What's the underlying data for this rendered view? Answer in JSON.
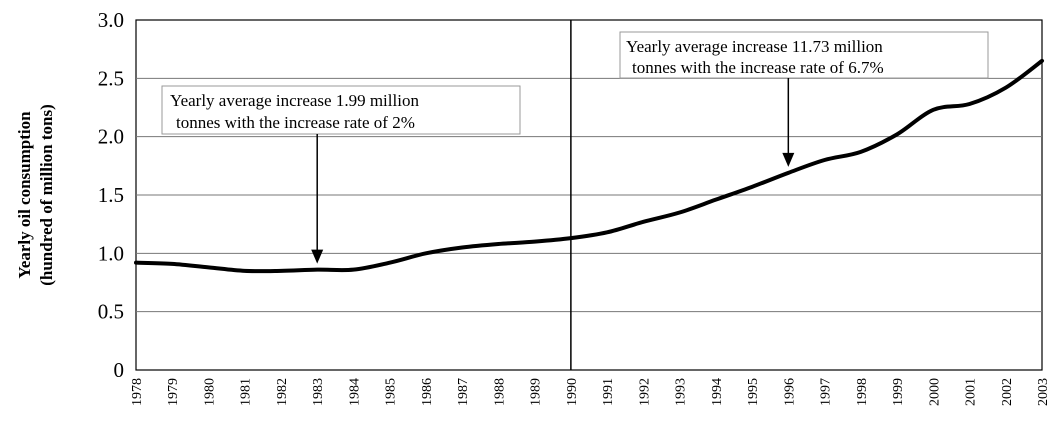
{
  "chart_data": {
    "type": "line",
    "title": "",
    "xlabel": "",
    "ylabel_line1": "Yearly oil consumption",
    "ylabel_line2": "(hundred of million tons)",
    "x": [
      "1978",
      "1979",
      "1980",
      "1981",
      "1982",
      "1983",
      "1984",
      "1985",
      "1986",
      "1987",
      "1988",
      "1989",
      "1990",
      "1991",
      "1992",
      "1993",
      "1994",
      "1995",
      "1996",
      "1997",
      "1998",
      "1999",
      "2000",
      "2001",
      "2002",
      "2003"
    ],
    "series": [
      {
        "values": [
          0.92,
          0.91,
          0.88,
          0.85,
          0.85,
          0.86,
          0.86,
          0.92,
          1.0,
          1.05,
          1.08,
          1.1,
          1.13,
          1.18,
          1.27,
          1.35,
          1.46,
          1.57,
          1.69,
          1.8,
          1.87,
          2.02,
          2.23,
          2.28,
          2.42,
          2.65
        ],
        "color": "#000000"
      }
    ],
    "ylim": [
      0,
      3.0
    ],
    "yticks": [
      "0",
      "0.5",
      "1.0",
      "1.5",
      "2.0",
      "2.5",
      "3.0"
    ],
    "grid": "horizontal",
    "vertical_divider_at": "1990",
    "annotations": [
      {
        "lines": [
          "Yearly average  increase 1.99 million",
          "tonnes with the increase  rate of 2%"
        ],
        "points_to_year": "1983"
      },
      {
        "lines": [
          "Yearly average  increase 11.73 million",
          "tonnes with the increase  rate of 6.7%"
        ],
        "points_to_year": "1996"
      }
    ]
  }
}
